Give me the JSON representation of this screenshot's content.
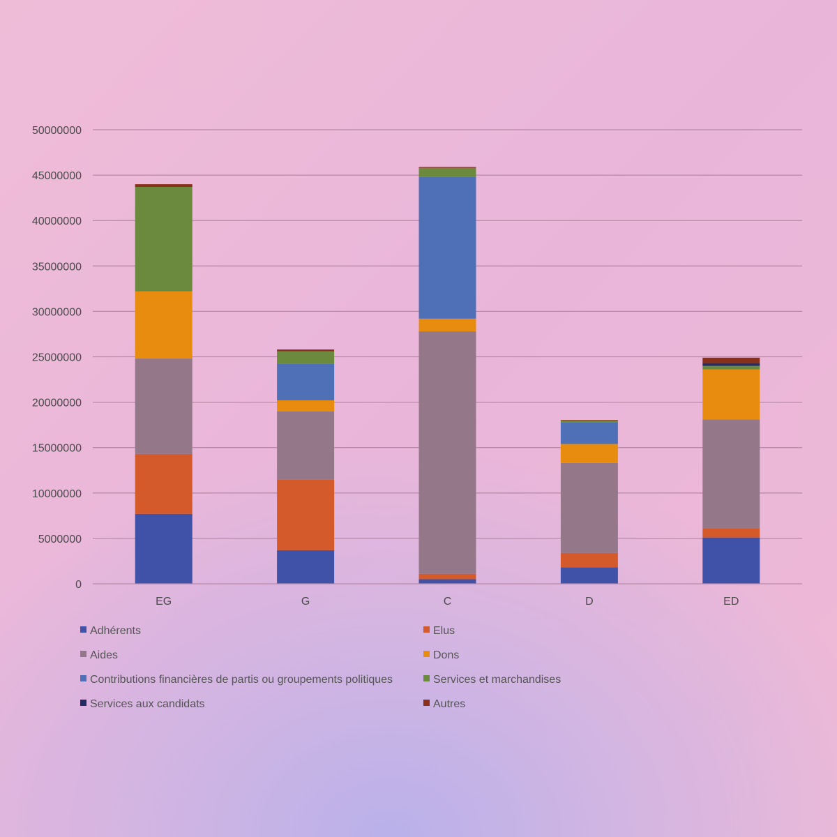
{
  "chart_data": {
    "type": "bar",
    "stacked": true,
    "title": "",
    "xlabel": "",
    "ylabel": "",
    "ylim": [
      0,
      50000000
    ],
    "yticks": [
      0,
      5000000,
      10000000,
      15000000,
      20000000,
      25000000,
      30000000,
      35000000,
      40000000,
      45000000,
      50000000
    ],
    "grid": true,
    "legend_position": "bottom",
    "categories": [
      "EG",
      "G",
      "C",
      "D",
      "ED"
    ],
    "series": [
      {
        "name": "Adhérents",
        "color": "#3f52a8",
        "values": [
          7700000,
          3700000,
          500000,
          1800000,
          5100000
        ]
      },
      {
        "name": "Elus",
        "color": "#d45a2c",
        "values": [
          6600000,
          7800000,
          600000,
          1600000,
          1000000
        ]
      },
      {
        "name": "Aides",
        "color": "#94788a",
        "values": [
          10500000,
          7500000,
          26700000,
          9900000,
          12000000
        ]
      },
      {
        "name": "Dons",
        "color": "#e88c10",
        "values": [
          7400000,
          1200000,
          1400000,
          2100000,
          5500000
        ]
      },
      {
        "name": "Contributions financières de partis ou groupements politiques",
        "color": "#4f6fb6",
        "values": [
          0,
          4000000,
          15600000,
          2400000,
          0
        ]
      },
      {
        "name": "Services et marchandises",
        "color": "#6b8a3e",
        "values": [
          11500000,
          1400000,
          1000000,
          200000,
          400000
        ]
      },
      {
        "name": "Services aux candidats",
        "color": "#232d63",
        "values": [
          0,
          0,
          0,
          0,
          300000
        ]
      },
      {
        "name": "Autres",
        "color": "#8a2f1a",
        "values": [
          300000,
          200000,
          100000,
          50000,
          600000
        ]
      }
    ]
  }
}
